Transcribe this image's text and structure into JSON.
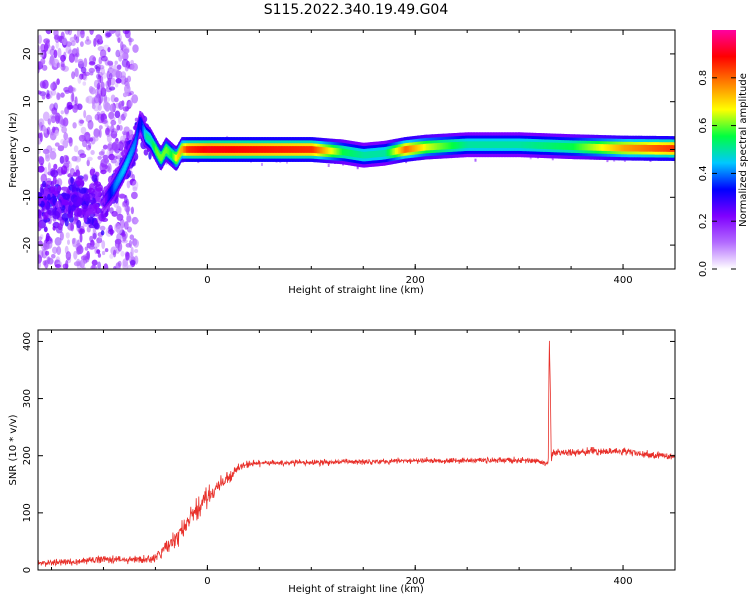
{
  "title": "S115.2022.340.19.49.G04",
  "chart_data": [
    {
      "type": "heatmap",
      "xlabel": "Height of straight line (km)",
      "ylabel": "Frequency (Hz)",
      "xlim": [
        -163,
        450
      ],
      "ylim": [
        -25,
        25
      ],
      "xticks": [
        0,
        200,
        400
      ],
      "yticks": [
        -20,
        -10,
        0,
        10,
        20
      ],
      "colorbar": {
        "label": "Normalized spectral amplitude",
        "range": [
          0,
          1
        ],
        "ticks": [
          "0.0",
          "0.2",
          "0.4",
          "0.6",
          "0.8"
        ],
        "colors": [
          "#ffffff",
          "#b36bff",
          "#7f00ff",
          "#0000ff",
          "#00c8ff",
          "#00ff40",
          "#ffff00",
          "#ff8000",
          "#ff0000",
          "#ff00a0"
        ]
      },
      "ridge": {
        "x": [
          -100,
          -90,
          -80,
          -70,
          -65,
          -60,
          -55,
          -50,
          -45,
          -40,
          -35,
          -30,
          -25,
          -20,
          0,
          100,
          130,
          150,
          170,
          190,
          210,
          250,
          300,
          350,
          400,
          450
        ],
        "y": [
          -11,
          -8,
          -4,
          1,
          6,
          3,
          2,
          0,
          -2,
          0,
          -1,
          -2,
          0,
          0,
          0,
          0,
          -0.5,
          -1.2,
          -0.8,
          0,
          0.5,
          1,
          1,
          0.6,
          0.3,
          0.2
        ],
        "amplitude": [
          0.2,
          0.4,
          0.45,
          0.4,
          0.3,
          0.5,
          0.5,
          0.6,
          0.6,
          0.6,
          0.55,
          0.7,
          0.75,
          0.85,
          0.9,
          0.85,
          0.55,
          0.5,
          0.5,
          0.8,
          0.65,
          0.5,
          0.5,
          0.55,
          0.75,
          0.85
        ]
      }
    },
    {
      "type": "line",
      "xlabel": "Height of straight line (km)",
      "ylabel": "SNR (10 * v/v)",
      "xlim": [
        -163,
        450
      ],
      "ylim": [
        0,
        420
      ],
      "xticks": [
        0,
        200,
        400
      ],
      "yticks": [
        0,
        100,
        200,
        300,
        400
      ],
      "series": [
        {
          "color": "#e8302a",
          "x": [
            -163,
            -120,
            -100,
            -80,
            -60,
            -50,
            -40,
            -30,
            -20,
            -10,
            0,
            10,
            20,
            30,
            40,
            50,
            100,
            150,
            200,
            250,
            300,
            320,
            328,
            329,
            330,
            331,
            332,
            340,
            360,
            400,
            430,
            450
          ],
          "y": [
            12,
            15,
            20,
            18,
            18,
            20,
            40,
            55,
            80,
            105,
            130,
            145,
            160,
            180,
            185,
            187,
            188,
            190,
            191,
            192,
            192,
            190,
            185,
            410,
            320,
            185,
            205,
            205,
            207,
            208,
            200,
            200
          ],
          "noise": [
            6,
            8,
            8,
            8,
            8,
            10,
            16,
            20,
            24,
            24,
            22,
            16,
            12,
            8,
            7,
            6,
            6,
            6,
            6,
            6,
            6,
            6,
            6,
            0,
            0,
            6,
            8,
            8,
            8,
            8,
            8,
            8
          ]
        }
      ]
    }
  ]
}
